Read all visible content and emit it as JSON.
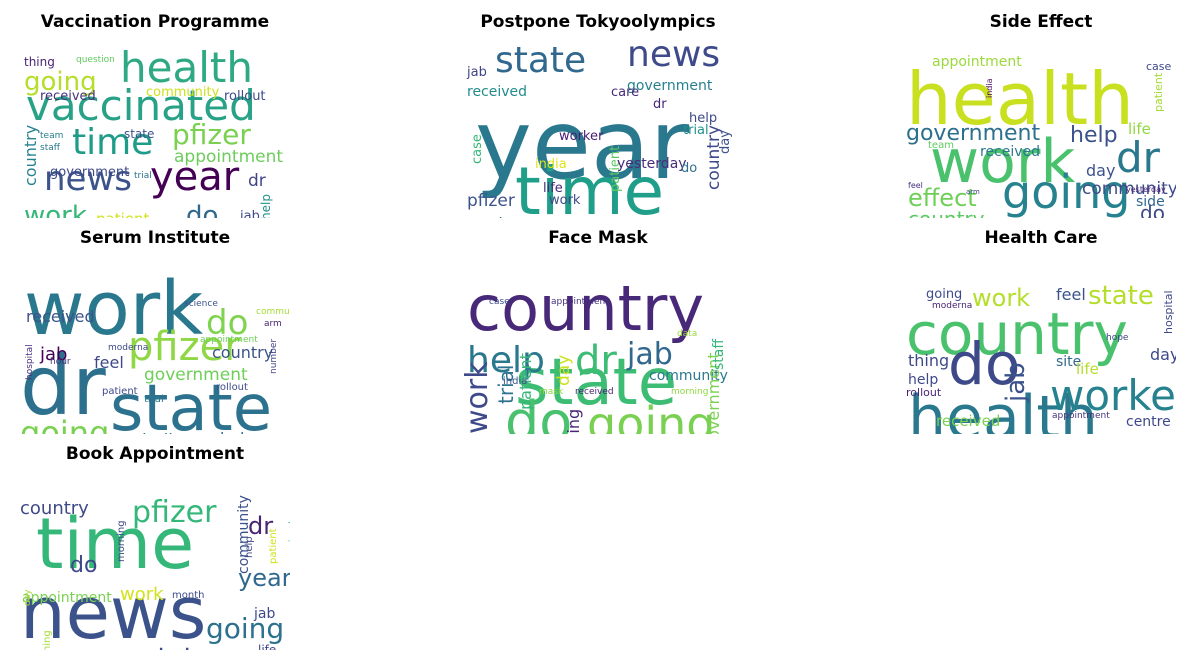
{
  "figure": {
    "panels": [
      {
        "title": "Vaccination Programme",
        "words": [
          {
            "text": "health",
            "color": "#2fa983"
          },
          {
            "text": "vaccinated",
            "color": "#27a286"
          },
          {
            "text": "time",
            "color": "#1e9c89"
          },
          {
            "text": "pfizer",
            "color": "#7ad151"
          },
          {
            "text": "news",
            "color": "#3b528b"
          },
          {
            "text": "year",
            "color": "#440154"
          },
          {
            "text": "going",
            "color": "#b5de2b"
          },
          {
            "text": "work",
            "color": "#35b779"
          },
          {
            "text": "do",
            "color": "#31688e"
          },
          {
            "text": "appointment",
            "color": "#6ccd5a"
          },
          {
            "text": "country",
            "color": "#26828e"
          },
          {
            "text": "dr",
            "color": "#414487"
          },
          {
            "text": "patient",
            "color": "#d2e21b"
          },
          {
            "text": "received",
            "color": "#46327e"
          },
          {
            "text": "rollout",
            "color": "#3e4a89"
          },
          {
            "text": "community",
            "color": "#cde11d"
          },
          {
            "text": "government",
            "color": "#3e4989"
          },
          {
            "text": "state",
            "color": "#3b528b"
          },
          {
            "text": "thing",
            "color": "#482475"
          },
          {
            "text": "question",
            "color": "#60ca60"
          },
          {
            "text": "trial",
            "color": "#2c728e"
          },
          {
            "text": "team",
            "color": "#277f8e"
          },
          {
            "text": "staff",
            "color": "#2a788e"
          },
          {
            "text": "jab",
            "color": "#3e4a89"
          },
          {
            "text": "help",
            "color": "#21918c"
          }
        ]
      },
      {
        "title": "Postpone Tokyoolympics",
        "words": [
          {
            "text": "year",
            "color": "#2a788e"
          },
          {
            "text": "time",
            "color": "#1f9e89"
          },
          {
            "text": "state",
            "color": "#31688e"
          },
          {
            "text": "news",
            "color": "#3e4a89"
          },
          {
            "text": "government",
            "color": "#27808e"
          },
          {
            "text": "country",
            "color": "#3e4989"
          },
          {
            "text": "pfizer",
            "color": "#3b528b"
          },
          {
            "text": "going",
            "color": "#2c728e"
          },
          {
            "text": "received",
            "color": "#228c8d"
          },
          {
            "text": "jab",
            "color": "#414487"
          },
          {
            "text": "care",
            "color": "#472a7a"
          },
          {
            "text": "dr",
            "color": "#482475"
          },
          {
            "text": "help",
            "color": "#3e4989"
          },
          {
            "text": "trial",
            "color": "#21918c"
          },
          {
            "text": "worker",
            "color": "#481f70"
          },
          {
            "text": "case",
            "color": "#35b779"
          },
          {
            "text": "india",
            "color": "#dfe318"
          },
          {
            "text": "life",
            "color": "#482878"
          },
          {
            "text": "work",
            "color": "#3e4a89"
          },
          {
            "text": "patient",
            "color": "#5ec962"
          },
          {
            "text": "yesterday",
            "color": "#472d7b"
          },
          {
            "text": "do",
            "color": "#2d708e"
          },
          {
            "text": "day",
            "color": "#3b528b"
          },
          {
            "text": "appointment",
            "color": "#31688e"
          },
          {
            "text": "community",
            "color": "#3e4989"
          }
        ]
      },
      {
        "title": "Side Effect",
        "words": [
          {
            "text": "health",
            "color": "#c8e020"
          },
          {
            "text": "work",
            "color": "#4ac16d"
          },
          {
            "text": "going",
            "color": "#26828e"
          },
          {
            "text": "dr",
            "color": "#2a788e"
          },
          {
            "text": "government",
            "color": "#2d708e"
          },
          {
            "text": "help",
            "color": "#3b528b"
          },
          {
            "text": "appointment",
            "color": "#9bd93c"
          },
          {
            "text": "effect",
            "color": "#6ece58"
          },
          {
            "text": "country",
            "color": "#5ec962"
          },
          {
            "text": "community",
            "color": "#3e4a89"
          },
          {
            "text": "received",
            "color": "#2a788e"
          },
          {
            "text": "rollout",
            "color": "#25848e"
          },
          {
            "text": "staff",
            "color": "#3b528b"
          },
          {
            "text": "side",
            "color": "#31688e"
          },
          {
            "text": "do",
            "color": "#3e4a89"
          },
          {
            "text": "day",
            "color": "#3b528b"
          },
          {
            "text": "life",
            "color": "#90d743"
          },
          {
            "text": "case",
            "color": "#3e4989"
          },
          {
            "text": "patient",
            "color": "#a5db36"
          },
          {
            "text": "team",
            "color": "#5ec962"
          },
          {
            "text": "moderna",
            "color": "#482173"
          },
          {
            "text": "feel",
            "color": "#46327e"
          },
          {
            "text": "yesterday",
            "color": "#482475"
          },
          {
            "text": "india",
            "color": "#440154"
          },
          {
            "text": "arm",
            "color": "#3e4989"
          }
        ]
      },
      {
        "title": "Serum Institute",
        "words": [
          {
            "text": "work",
            "color": "#2a788e"
          },
          {
            "text": "dr",
            "color": "#2d708e"
          },
          {
            "text": "state",
            "color": "#2c728e"
          },
          {
            "text": "pfizer",
            "color": "#8fd744"
          },
          {
            "text": "going",
            "color": "#7ad151"
          },
          {
            "text": "do",
            "color": "#7fd34e"
          },
          {
            "text": "country",
            "color": "#3b528b"
          },
          {
            "text": "government",
            "color": "#6ece58"
          },
          {
            "text": "received",
            "color": "#3b528b"
          },
          {
            "text": "india",
            "color": "#287c8e"
          },
          {
            "text": "help",
            "color": "#31688e"
          },
          {
            "text": "jab",
            "color": "#440154"
          },
          {
            "text": "feel",
            "color": "#3e4989"
          },
          {
            "text": "community",
            "color": "#a5db36"
          },
          {
            "text": "science",
            "color": "#3b528b"
          },
          {
            "text": "arm",
            "color": "#482475"
          },
          {
            "text": "moderna",
            "color": "#3e4a89"
          },
          {
            "text": "appointment",
            "color": "#6ece58"
          },
          {
            "text": "hour",
            "color": "#46327e"
          },
          {
            "text": "rollout",
            "color": "#3e4a89"
          },
          {
            "text": "patient",
            "color": "#3e4989"
          },
          {
            "text": "trial",
            "color": "#2a788e"
          },
          {
            "text": "hospital",
            "color": "#46327e"
          },
          {
            "text": "number",
            "color": "#414487"
          },
          {
            "text": "thing",
            "color": "#7ad151"
          }
        ]
      },
      {
        "title": "Face Mask",
        "words": [
          {
            "text": "country",
            "color": "#482878"
          },
          {
            "text": "state",
            "color": "#3dbc74"
          },
          {
            "text": "do",
            "color": "#4ac16d"
          },
          {
            "text": "going",
            "color": "#7ad151"
          },
          {
            "text": "help",
            "color": "#2a788e"
          },
          {
            "text": "dr",
            "color": "#3dbc74"
          },
          {
            "text": "jab",
            "color": "#31688e"
          },
          {
            "text": "community",
            "color": "#2a788e"
          },
          {
            "text": "work",
            "color": "#3e4a89"
          },
          {
            "text": "trial",
            "color": "#2c728e"
          },
          {
            "text": "patient",
            "color": "#35b779"
          },
          {
            "text": "thing",
            "color": "#482475"
          },
          {
            "text": "rollout",
            "color": "#31688e"
          },
          {
            "text": "feel",
            "color": "#3b528b"
          },
          {
            "text": "government",
            "color": "#7ad151"
          },
          {
            "text": "staff",
            "color": "#35b779"
          },
          {
            "text": "day",
            "color": "#cde11d"
          },
          {
            "text": "india",
            "color": "#3b528b"
          },
          {
            "text": "data",
            "color": "#9bd93c"
          },
          {
            "text": "case",
            "color": "#3e4a89"
          },
          {
            "text": "appointment",
            "color": "#46327e"
          },
          {
            "text": "mask",
            "color": "#90d743"
          },
          {
            "text": "received",
            "color": "#482475"
          },
          {
            "text": "morning",
            "color": "#90d743"
          },
          {
            "text": "science",
            "color": "#2a788e"
          }
        ]
      },
      {
        "title": "Health Care",
        "words": [
          {
            "text": "country",
            "color": "#4ac16d"
          },
          {
            "text": "health",
            "color": "#2a788e"
          },
          {
            "text": "do",
            "color": "#3e4989"
          },
          {
            "text": "worker",
            "color": "#26828e"
          },
          {
            "text": "work",
            "color": "#b5de2b"
          },
          {
            "text": "state",
            "color": "#b5de2b"
          },
          {
            "text": "jab",
            "color": "#3b528b"
          },
          {
            "text": "going",
            "color": "#3e4a89"
          },
          {
            "text": "feel",
            "color": "#3b528b"
          },
          {
            "text": "day",
            "color": "#3e4989"
          },
          {
            "text": "hospital",
            "color": "#3e4989"
          },
          {
            "text": "thing",
            "color": "#3e4989"
          },
          {
            "text": "site",
            "color": "#31688e"
          },
          {
            "text": "life",
            "color": "#b5de2b"
          },
          {
            "text": "help",
            "color": "#3e4a89"
          },
          {
            "text": "rollout",
            "color": "#482475"
          },
          {
            "text": "received",
            "color": "#7ad151"
          },
          {
            "text": "community",
            "color": "#a5db36"
          },
          {
            "text": "government",
            "color": "#35b779"
          },
          {
            "text": "dr",
            "color": "#3e4a89"
          },
          {
            "text": "morning",
            "color": "#3b528b"
          },
          {
            "text": "centre",
            "color": "#3e4989"
          },
          {
            "text": "hope",
            "color": "#3e4989"
          },
          {
            "text": "moderna",
            "color": "#482475"
          },
          {
            "text": "appointment",
            "color": "#46327e"
          }
        ]
      },
      {
        "title": "Book Appointment",
        "words": [
          {
            "text": "news",
            "color": "#3b528b"
          },
          {
            "text": "time",
            "color": "#35b779"
          },
          {
            "text": "pfizer",
            "color": "#35b779"
          },
          {
            "text": "health",
            "color": "#26828e"
          },
          {
            "text": "state",
            "color": "#3e4989"
          },
          {
            "text": "going",
            "color": "#2c728e"
          },
          {
            "text": "year",
            "color": "#31688e"
          },
          {
            "text": "country",
            "color": "#3e4a89"
          },
          {
            "text": "dr",
            "color": "#482475"
          },
          {
            "text": "do",
            "color": "#3e4989"
          },
          {
            "text": "work",
            "color": "#d2e21b"
          },
          {
            "text": "appointment",
            "color": "#7ad151"
          },
          {
            "text": "community",
            "color": "#3b528b"
          },
          {
            "text": "jab",
            "color": "#3e4989"
          },
          {
            "text": "life",
            "color": "#3e4989"
          },
          {
            "text": "month",
            "color": "#3e4989"
          },
          {
            "text": "morning",
            "color": "#3e4989"
          },
          {
            "text": "help",
            "color": "#3e4989"
          },
          {
            "text": "patient",
            "color": "#cde11d"
          },
          {
            "text": "received",
            "color": "#35b779"
          },
          {
            "text": "staff",
            "color": "#3b528b"
          },
          {
            "text": "trial",
            "color": "#dfe318"
          },
          {
            "text": "government",
            "color": "#3e4989"
          },
          {
            "text": "thing",
            "color": "#a5db36"
          },
          {
            "text": "day",
            "color": "#a5db36"
          }
        ]
      }
    ]
  }
}
